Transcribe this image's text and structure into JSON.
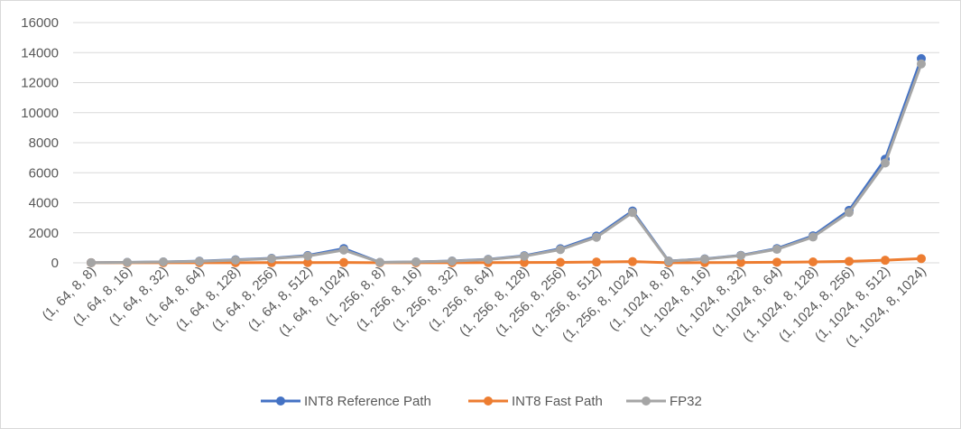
{
  "chart_data": {
    "type": "line",
    "categories": [
      "(1, 64, 8, 8)",
      "(1, 64, 8, 16)",
      "(1, 64, 8, 32)",
      "(1, 64, 8, 64)",
      "(1, 64, 8, 128)",
      "(1, 64, 8, 256)",
      "(1, 64, 8, 512)",
      "(1, 64, 8, 1024)",
      "(1, 256, 8, 8)",
      "(1, 256, 8, 16)",
      "(1, 256, 8, 32)",
      "(1, 256, 8, 64)",
      "(1, 256, 8, 128)",
      "(1, 256, 8, 256)",
      "(1, 256, 8, 512)",
      "(1, 256, 8, 1024)",
      "(1, 1024, 8, 8)",
      "(1, 1024, 8, 16)",
      "(1, 1024, 8, 32)",
      "(1, 1024, 8, 64)",
      "(1, 1024, 8, 128)",
      "(1, 1024, 8, 256)",
      "(1, 1024, 8, 512)",
      "(1, 1024, 8, 1024)"
    ],
    "series": [
      {
        "name": "INT8 Reference Path",
        "color": "#4472c4",
        "values": [
          10,
          30,
          60,
          110,
          200,
          300,
          490,
          950,
          30,
          60,
          120,
          230,
          470,
          940,
          1780,
          3450,
          120,
          260,
          500,
          950,
          1800,
          3500,
          6900,
          13600
        ]
      },
      {
        "name": "INT8 Fast Path",
        "color": "#ed7d31",
        "values": [
          5,
          5,
          5,
          8,
          10,
          12,
          15,
          20,
          5,
          8,
          10,
          12,
          20,
          30,
          50,
          80,
          8,
          12,
          20,
          40,
          60,
          100,
          170,
          280
        ]
      },
      {
        "name": "FP32",
        "color": "#a5a5a5",
        "values": [
          10,
          30,
          60,
          100,
          180,
          280,
          450,
          850,
          30,
          60,
          110,
          220,
          440,
          880,
          1700,
          3350,
          110,
          250,
          480,
          900,
          1720,
          3350,
          6650,
          13250
        ]
      }
    ],
    "y_ticks": [
      "0",
      "2000",
      "4000",
      "6000",
      "8000",
      "10000",
      "12000",
      "14000",
      "16000"
    ],
    "ylim": [
      0,
      16000
    ],
    "grid": "horizontal",
    "legend": "bottom",
    "title": "",
    "xlabel": "",
    "ylabel": ""
  }
}
